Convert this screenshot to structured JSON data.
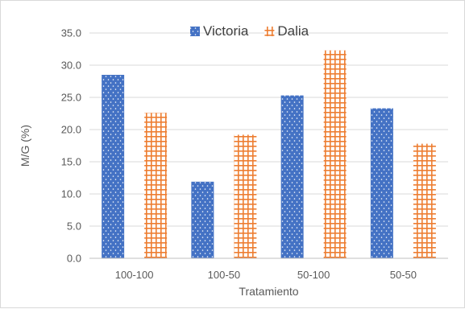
{
  "chart_data": {
    "type": "bar",
    "categories": [
      "100-100",
      "100-50",
      "50-100",
      "50-50"
    ],
    "series": [
      {
        "name": "Victoria",
        "values": [
          28.5,
          11.9,
          25.3,
          23.3
        ],
        "color": "#4472c4",
        "pattern": "dotted"
      },
      {
        "name": "Dalia",
        "values": [
          22.6,
          19.2,
          32.3,
          17.8
        ],
        "color": "#ed7d31",
        "pattern": "grid"
      }
    ],
    "xlabel": "Tratamiento",
    "ylabel": "M/G (%)",
    "ylim": [
      0,
      35
    ],
    "yticks": [
      "0.0",
      "5.0",
      "10.0",
      "15.0",
      "20.0",
      "25.0",
      "30.0",
      "35.0"
    ],
    "grid": true,
    "legend_position": "top-center"
  }
}
